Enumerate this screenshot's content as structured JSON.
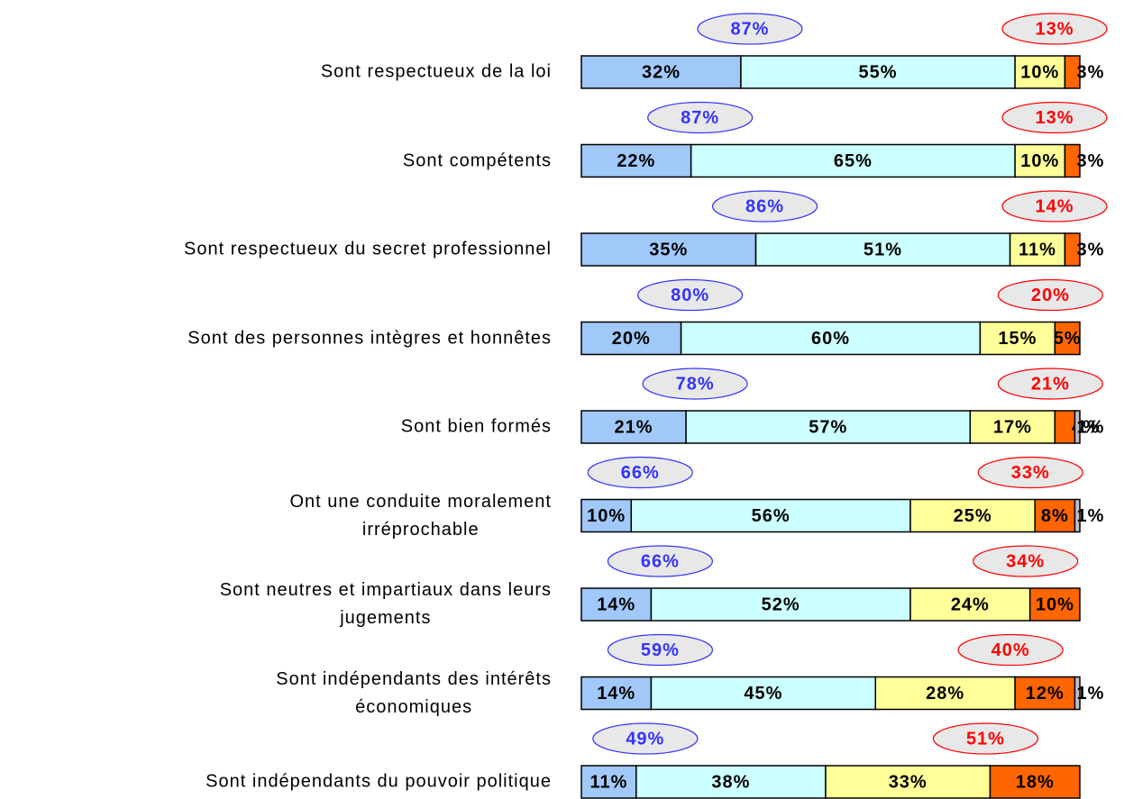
{
  "chart_data": {
    "type": "stacked-bar",
    "orientation": "horizontal",
    "categories": [
      "Sont respectueux de la loi",
      "Sont compétents",
      "Sont respectueux du secret professionnel",
      "Sont des personnes intègres et honnêtes",
      "Sont bien formés",
      "Ont une conduite moralement\nirréprochable",
      "Sont neutres et impartiaux dans leurs\njugements",
      "Sont indépendants des intérêts\néconomiques",
      "Sont indépendants du pouvoir politique"
    ],
    "series": [
      {
        "color": "#a0c8f8",
        "values": [
          32,
          22,
          35,
          20,
          21,
          10,
          14,
          14,
          11
        ],
        "value_labels": [
          "32%",
          "22%",
          "35%",
          "20%",
          "21%",
          "10%",
          "14%",
          "14%",
          "11%"
        ]
      },
      {
        "color": "#ccffff",
        "values": [
          55,
          65,
          51,
          60,
          57,
          56,
          52,
          45,
          38
        ],
        "value_labels": [
          "55%",
          "65%",
          "51%",
          "60%",
          "57%",
          "56%",
          "52%",
          "45%",
          "38%"
        ]
      },
      {
        "color": "#ffff99",
        "values": [
          10,
          10,
          11,
          15,
          17,
          25,
          24,
          28,
          33
        ],
        "value_labels": [
          "10%",
          "10%",
          "11%",
          "15%",
          "17%",
          "25%",
          "24%",
          "28%",
          "33%"
        ]
      },
      {
        "color": "#ff6600",
        "values": [
          3,
          3,
          3,
          5,
          4,
          8,
          10,
          12,
          18
        ],
        "value_labels": [
          "3%",
          "3%",
          "3%",
          "5%",
          "4%",
          "8%",
          "10%",
          "12%",
          "18%"
        ]
      },
      {
        "color": "#c0c0c0",
        "values": [
          null,
          null,
          null,
          null,
          1,
          1,
          null,
          1,
          null
        ],
        "value_labels": [
          null,
          null,
          null,
          null,
          "1%",
          "1%",
          null,
          "1%",
          null
        ]
      }
    ],
    "positive_totals": {
      "values": [
        87,
        87,
        86,
        80,
        78,
        66,
        66,
        59,
        49
      ],
      "value_labels": [
        "87%",
        "87%",
        "86%",
        "80%",
        "78%",
        "66%",
        "66%",
        "59%",
        "49%"
      ],
      "color": "#3333ff"
    },
    "negative_totals": {
      "values": [
        13,
        13,
        14,
        20,
        21,
        33,
        34,
        40,
        51
      ],
      "value_labels": [
        "13%",
        "13%",
        "14%",
        "20%",
        "21%",
        "33%",
        "34%",
        "40%",
        "51%"
      ],
      "color": "#ff0000"
    },
    "xlim": [
      0,
      100
    ]
  }
}
